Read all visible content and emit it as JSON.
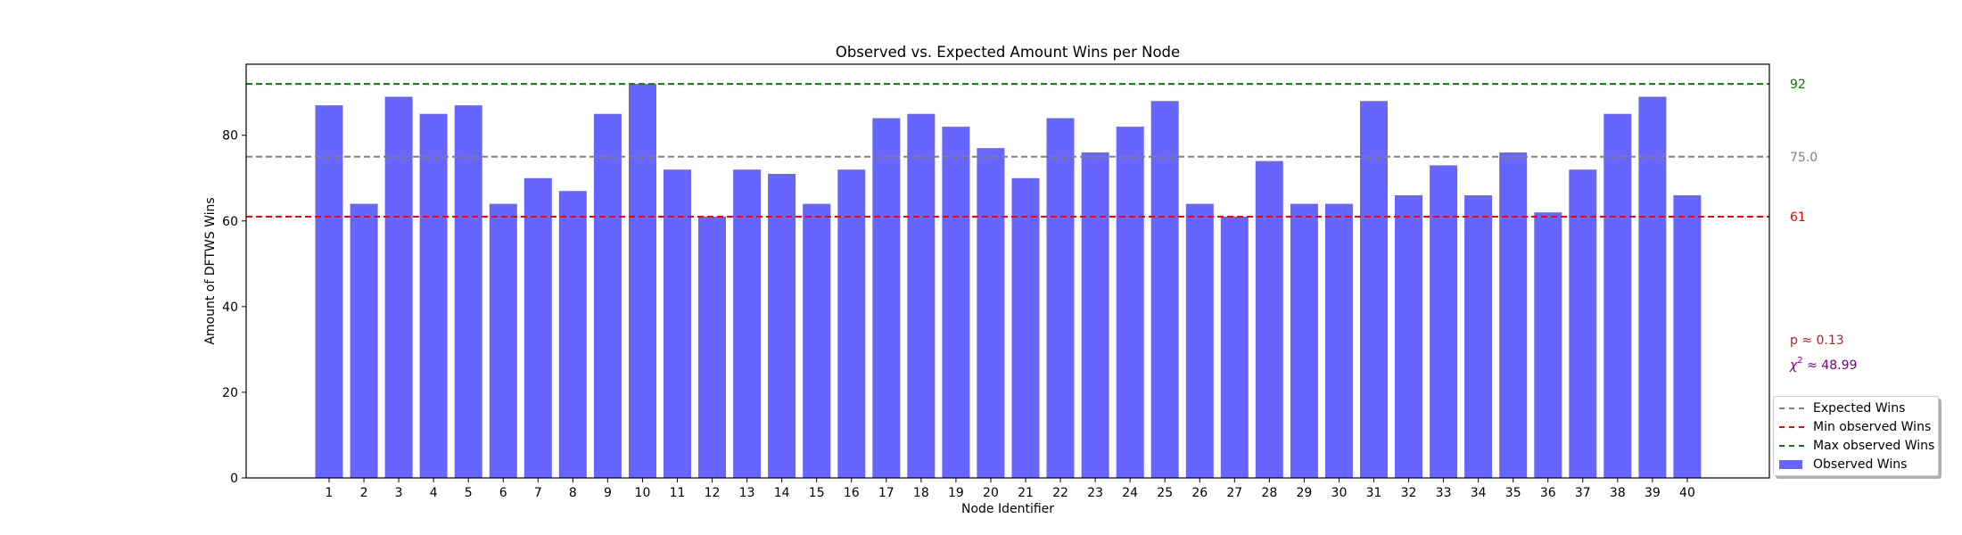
{
  "chart_data": {
    "type": "bar",
    "title": "Observed vs. Expected Amount Wins per Node",
    "xlabel": "Node Identifier",
    "ylabel": "Amount of DFTWS Wins",
    "categories": [
      "1",
      "2",
      "3",
      "4",
      "5",
      "6",
      "7",
      "8",
      "9",
      "10",
      "11",
      "12",
      "13",
      "14",
      "15",
      "16",
      "17",
      "18",
      "19",
      "20",
      "21",
      "22",
      "23",
      "24",
      "25",
      "26",
      "27",
      "28",
      "29",
      "30",
      "31",
      "32",
      "33",
      "34",
      "35",
      "36",
      "37",
      "38",
      "39",
      "40"
    ],
    "values": [
      87,
      64,
      89,
      85,
      87,
      64,
      70,
      67,
      85,
      92,
      72,
      61,
      72,
      71,
      64,
      72,
      84,
      85,
      82,
      77,
      70,
      84,
      76,
      82,
      88,
      64,
      61,
      74,
      64,
      64,
      88,
      66,
      73,
      66,
      76,
      62,
      72,
      85,
      89,
      66
    ],
    "ylim": [
      0,
      96.6
    ],
    "yticks": [
      0,
      20,
      40,
      60,
      80
    ],
    "bar_color": "#6666ff",
    "reference_lines": [
      {
        "name": "Expected Wins",
        "value": 75.0,
        "label": "75.0",
        "color": "#808080"
      },
      {
        "name": "Min observed Wins",
        "value": 61,
        "label": "61",
        "color": "#ff0000"
      },
      {
        "name": "Max observed Wins",
        "value": 92,
        "label": "92",
        "color": "#008000"
      }
    ],
    "annotations": {
      "p_value": "p ≈ 0.13",
      "p_color": "#b22222",
      "chi2_symbol": "χ",
      "chi2_exp": "2",
      "chi2_value": " ≈ 48.99",
      "chi2_color": "#800080"
    },
    "legend": {
      "position": "lower-right-outside",
      "entries": [
        "Expected Wins",
        "Min observed Wins",
        "Max observed Wins",
        "Observed Wins"
      ]
    },
    "grid": false
  }
}
